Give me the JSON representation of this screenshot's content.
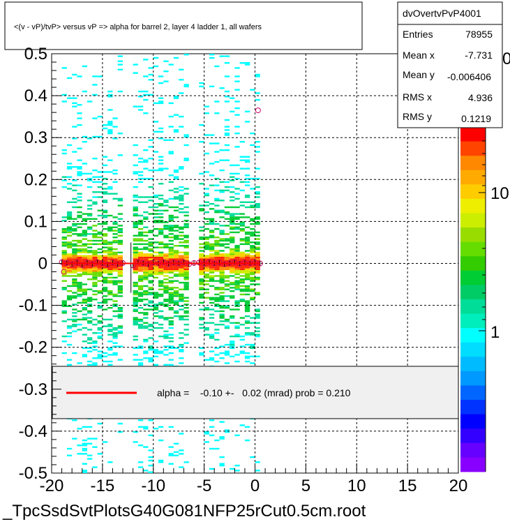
{
  "chart_data": {
    "type": "heatmap",
    "title": "<(v - vP)/tvP> versus   vP => alpha for barrel 2, layer 4 ladder 1, all wafers",
    "xlabel": "",
    "ylabel": "",
    "xlim": [
      -20,
      20
    ],
    "ylim": [
      -0.5,
      0.5
    ],
    "x_ticks": [
      "-20",
      "-15",
      "-10",
      "-5",
      "0",
      "5",
      "10",
      "15",
      "20"
    ],
    "y_ticks": [
      "-0.5",
      "-0.4",
      "-0.3",
      "-0.2",
      "-0.1",
      "0",
      "0.1",
      "0.2",
      "0.3",
      "0.4",
      "0.5"
    ],
    "colorbar_ticks": [
      "1",
      "10"
    ],
    "colorbar_top_partial": "0",
    "data_x_range": [
      -19,
      0.5
    ],
    "gaps_x": [
      -12.5,
      -6
    ],
    "profile_points": [
      {
        "x": -19.0,
        "y": 0.003
      },
      {
        "x": -18.5,
        "y": 0.001
      },
      {
        "x": -18.0,
        "y": -0.002
      },
      {
        "x": -17.5,
        "y": 0.002
      },
      {
        "x": -17.0,
        "y": -0.004
      },
      {
        "x": -16.5,
        "y": 0.002
      },
      {
        "x": -16.0,
        "y": -0.002
      },
      {
        "x": -15.5,
        "y": 0.003
      },
      {
        "x": -15.0,
        "y": 0.0
      },
      {
        "x": -14.5,
        "y": -0.003
      },
      {
        "x": -14.0,
        "y": 0.002
      },
      {
        "x": -13.5,
        "y": -0.002
      },
      {
        "x": -13.0,
        "y": 0.001
      },
      {
        "x": -12.0,
        "y": -0.005
      },
      {
        "x": -11.5,
        "y": 0.003
      },
      {
        "x": -11.0,
        "y": 0.001
      },
      {
        "x": -10.5,
        "y": -0.002
      },
      {
        "x": -10.0,
        "y": 0.002
      },
      {
        "x": -9.5,
        "y": 0.0
      },
      {
        "x": -9.0,
        "y": 0.003
      },
      {
        "x": -8.5,
        "y": -0.001
      },
      {
        "x": -8.0,
        "y": 0.002
      },
      {
        "x": -7.5,
        "y": 0.0
      },
      {
        "x": -7.0,
        "y": 0.003
      },
      {
        "x": -6.5,
        "y": -0.002
      },
      {
        "x": -6.0,
        "y": 0.001
      },
      {
        "x": -5.5,
        "y": 0.002
      },
      {
        "x": -5.0,
        "y": -0.001
      },
      {
        "x": -4.5,
        "y": 0.003
      },
      {
        "x": -4.0,
        "y": 0.0
      },
      {
        "x": -3.5,
        "y": 0.002
      },
      {
        "x": -3.0,
        "y": -0.002
      },
      {
        "x": -2.5,
        "y": 0.001
      },
      {
        "x": -2.0,
        "y": 0.003
      },
      {
        "x": -1.5,
        "y": -0.001
      },
      {
        "x": -1.0,
        "y": 0.002
      },
      {
        "x": -0.5,
        "y": 0.0
      },
      {
        "x": 0.0,
        "y": 0.002
      },
      {
        "x": 0.5,
        "y": 0.0
      }
    ],
    "outlier_points": [
      {
        "x": 0.3,
        "y": 0.365
      },
      {
        "x": -18.8,
        "y": -0.02
      }
    ],
    "fit_line": {
      "x": [
        -19,
        0.5
      ],
      "y": [
        0.0,
        0.0
      ],
      "color": "#ff0000"
    },
    "stats_box": {
      "name": "dvOvertvPvP4001",
      "rows": [
        {
          "label": "Entries",
          "value": "78955"
        },
        {
          "label": "Mean x",
          "value": "-7.731"
        },
        {
          "label": "Mean y",
          "value": "-0.006406"
        },
        {
          "label": "RMS x",
          "value": "4.936"
        },
        {
          "label": "RMS y",
          "value": "0.1219"
        }
      ]
    },
    "fit_legend": {
      "text": "alpha =    -0.10 +-   0.02 (mrad) prob = 0.210",
      "line_color": "#ff0000"
    },
    "grid": true,
    "colors": {
      "heat_low": "#00ffff",
      "heat_mid": "#00cc33",
      "heat_high": "#ff0000",
      "marker_edge": "#cc0066",
      "legend_bg": "#f0f0f0"
    }
  },
  "footer": {
    "filename": "_TpcSsdSvtPlotsG40G081NFP25rCut0.5cm.root"
  }
}
